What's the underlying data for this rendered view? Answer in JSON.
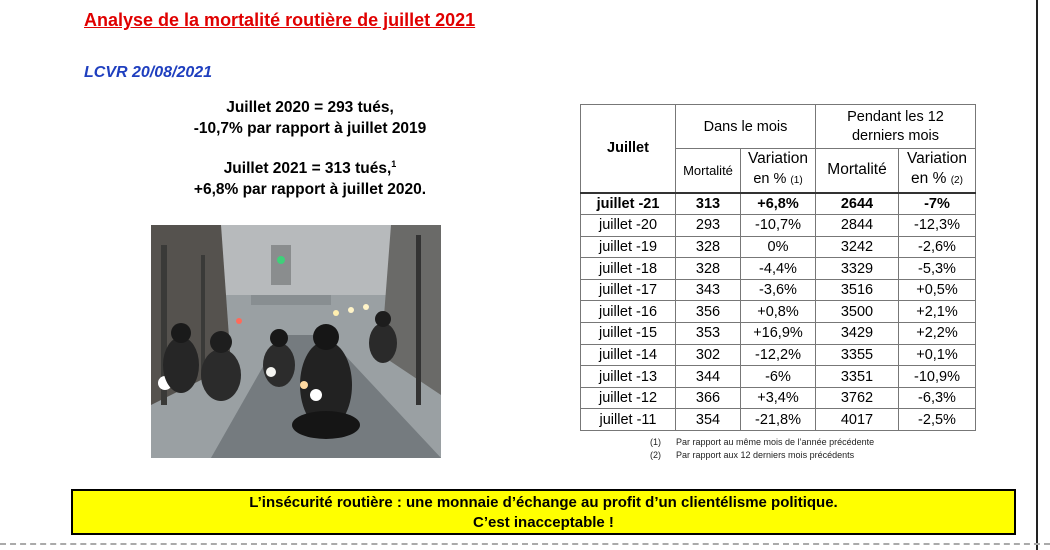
{
  "title": "Analyse de la mortalité routière de juillet 2021",
  "author": "LCVR 20/08/2021",
  "stats": {
    "line1": "Juillet 2020 = 293 tués,",
    "line2": "-10,7% par rapport à juillet 2019",
    "line3": "Juillet 2021 = 313 tués,",
    "line3_sup": "1",
    "line4": "+6,8% par rapport à juillet 2020."
  },
  "table": {
    "header": {
      "row_label": "Juillet",
      "group_month": "Dans le mois",
      "group_12": "Pendant les 12 derniers mois",
      "mortalite": "Mortalité",
      "variation": "Variation",
      "en_pct_1": "en %",
      "note_1": "(1)",
      "en_pct_2": "en %",
      "note_2": "(2)"
    },
    "rows": [
      {
        "label": "juillet -21",
        "m": "313",
        "v": "+6,8%",
        "m12": "2644",
        "v12": "-7%"
      },
      {
        "label": "juillet -20",
        "m": "293",
        "v": "-10,7%",
        "m12": "2844",
        "v12": "-12,3%"
      },
      {
        "label": "juillet -19",
        "m": "328",
        "v": "0%",
        "m12": "3242",
        "v12": "-2,6%"
      },
      {
        "label": "juillet -18",
        "m": "328",
        "v": "-4,4%",
        "m12": "3329",
        "v12": "-5,3%"
      },
      {
        "label": "juillet -17",
        "m": "343",
        "v": "-3,6%",
        "m12": "3516",
        "v12": "+0,5%"
      },
      {
        "label": "juillet -16",
        "m": "356",
        "v": "+0,8%",
        "m12": "3500",
        "v12": "+2,1%"
      },
      {
        "label": "juillet -15",
        "m": "353",
        "v": "+16,9%",
        "m12": "3429",
        "v12": "+2,2%"
      },
      {
        "label": "juillet -14",
        "m": "302",
        "v": "-12,2%",
        "m12": "3355",
        "v12": "+0,1%"
      },
      {
        "label": "juillet -13",
        "m": "344",
        "v": "-6%",
        "m12": "3351",
        "v12": "-10,9%"
      },
      {
        "label": "juillet -12",
        "m": "366",
        "v": "+3,4%",
        "m12": "3762",
        "v12": "-6,3%"
      },
      {
        "label": "juillet -11",
        "m": "354",
        "v": "-21,8%",
        "m12": "4017",
        "v12": "-2,5%"
      }
    ]
  },
  "notes": [
    {
      "num": "(1)",
      "text": "Par rapport au même mois de l’année précédente"
    },
    {
      "num": "(2)",
      "text": "Par rapport aux 12 derniers mois précédents"
    }
  ],
  "banner": {
    "line1": "L’insécurité routière : une monnaie d’échange au profit d’un clientélisme politique.",
    "line2": "C’est inacceptable !"
  },
  "colors": {
    "title": "#e00000",
    "author": "#1f3fbf",
    "banner_bg": "#ffff00"
  }
}
